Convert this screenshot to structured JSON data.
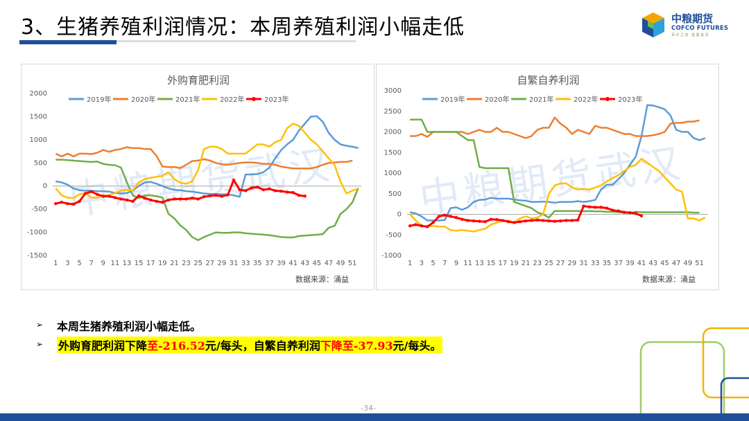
{
  "page": {
    "title": "3、生猪养殖利润情况：本周养殖利润小幅走低",
    "logo_cn": "中粮期货",
    "logo_en": "COFCO FUTURES",
    "logo_sub": "百年之道  基業長青",
    "page_number": "-34-"
  },
  "bullets": {
    "line1": "本周生猪养殖利润小幅走低。",
    "line2": {
      "part1": "外购育肥利润下降",
      "part2": "至",
      "part3": "-216.52",
      "part4": "元/每头，自繁自养利润",
      "part5": "下降至",
      "part6": "-37.93",
      "part7": "元/每头。"
    }
  },
  "colors": {
    "2019年": "#5b9bd5",
    "2020年": "#ed7d31",
    "2021年": "#70ad47",
    "2022年": "#ffc000",
    "2023年": "#ff0000",
    "brand": "#1f4e9a"
  },
  "chart_data": [
    {
      "id": "chart-left",
      "type": "line",
      "title": "外购育肥利润",
      "watermark": "中粮期货武汉",
      "source": "数据来源：涌益",
      "x": [
        1,
        2,
        3,
        4,
        5,
        6,
        7,
        8,
        9,
        10,
        11,
        12,
        13,
        14,
        15,
        16,
        17,
        18,
        19,
        20,
        21,
        22,
        23,
        24,
        25,
        26,
        27,
        28,
        29,
        30,
        31,
        32,
        33,
        34,
        35,
        36,
        37,
        38,
        39,
        40,
        41,
        42,
        43,
        44,
        45,
        46,
        47,
        48,
        49,
        50,
        51,
        52
      ],
      "x_ticks": [
        1,
        3,
        5,
        7,
        9,
        11,
        13,
        15,
        17,
        19,
        21,
        23,
        25,
        27,
        29,
        31,
        33,
        35,
        37,
        39,
        41,
        43,
        45,
        47,
        49,
        51
      ],
      "ylim": [
        -1500,
        2000
      ],
      "y_ticks": [
        -1500,
        -1000,
        -500,
        0,
        500,
        1000,
        1500,
        2000
      ],
      "series": [
        {
          "name": "2019年",
          "values": [
            100,
            80,
            30,
            -50,
            -90,
            -100,
            -100,
            -110,
            -110,
            -120,
            -150,
            -160,
            -150,
            -100,
            0,
            80,
            90,
            50,
            0,
            -50,
            -80,
            -90,
            -110,
            -120,
            -140,
            -160,
            -170,
            -170,
            -180,
            -180,
            -200,
            -230,
            250,
            250,
            260,
            300,
            400,
            600,
            780,
            900,
            1000,
            1200,
            1350,
            1500,
            1510,
            1390,
            1150,
            1000,
            900,
            870,
            850,
            820
          ]
        },
        {
          "name": "2020年",
          "values": [
            700,
            640,
            700,
            640,
            700,
            700,
            690,
            720,
            780,
            740,
            780,
            800,
            840,
            820,
            820,
            800,
            800,
            650,
            420,
            410,
            410,
            390,
            460,
            540,
            550,
            580,
            550,
            500,
            470,
            460,
            480,
            500,
            510,
            510,
            500,
            480,
            480,
            460,
            420,
            400,
            380,
            380,
            380,
            380,
            410,
            460,
            500,
            510,
            520,
            520,
            550,
            null
          ]
        },
        {
          "name": "2021年",
          "values": [
            570,
            570,
            560,
            550,
            540,
            530,
            520,
            530,
            480,
            460,
            450,
            400,
            80,
            -200,
            -260,
            -200,
            -200,
            -220,
            -250,
            -600,
            -700,
            -850,
            -950,
            -1100,
            -1170,
            -1100,
            -1050,
            -1000,
            -1010,
            -1010,
            -1000,
            -1000,
            -1020,
            -1030,
            -1040,
            -1050,
            -1060,
            -1080,
            -1100,
            -1110,
            -1110,
            -1080,
            -1070,
            -1060,
            -1050,
            -1040,
            -900,
            -860,
            -600,
            -500,
            -350,
            -40
          ]
        },
        {
          "name": "2022年",
          "values": [
            -50,
            -200,
            -250,
            -260,
            -180,
            -150,
            -250,
            -250,
            -200,
            -200,
            -150,
            -100,
            -80,
            -100,
            80,
            150,
            180,
            200,
            220,
            300,
            150,
            70,
            50,
            100,
            350,
            800,
            850,
            850,
            800,
            700,
            700,
            700,
            700,
            800,
            900,
            900,
            850,
            950,
            1000,
            1250,
            1350,
            1300,
            1150,
            1000,
            900,
            750,
            600,
            450,
            100,
            -160,
            -100,
            -50
          ]
        },
        {
          "name": "2023年",
          "values": [
            -380,
            -350,
            -380,
            -390,
            -330,
            -160,
            -120,
            -180,
            -220,
            -220,
            -250,
            -280,
            -300,
            -330,
            -210,
            -260,
            -300,
            -330,
            -350,
            -300,
            -280,
            -280,
            -280,
            -260,
            -280,
            -230,
            -210,
            -200,
            -220,
            -190,
            130,
            -80,
            -100,
            -40,
            -20,
            -80,
            -60,
            -100,
            -110,
            -130,
            -140,
            -200,
            -216.52,
            null,
            null,
            null,
            null,
            null,
            null,
            null,
            null,
            null
          ]
        }
      ]
    },
    {
      "id": "chart-right",
      "type": "line",
      "title": "自繁自养利润",
      "watermark": "中粮期货武汉",
      "source": "数据来源：涌益",
      "x": [
        1,
        2,
        3,
        4,
        5,
        6,
        7,
        8,
        9,
        10,
        11,
        12,
        13,
        14,
        15,
        16,
        17,
        18,
        19,
        20,
        21,
        22,
        23,
        24,
        25,
        26,
        27,
        28,
        29,
        30,
        31,
        32,
        33,
        34,
        35,
        36,
        37,
        38,
        39,
        40,
        41,
        42,
        43,
        44,
        45,
        46,
        47,
        48,
        49,
        50,
        51,
        52
      ],
      "x_ticks": [
        1,
        3,
        5,
        7,
        9,
        11,
        13,
        15,
        17,
        19,
        21,
        23,
        25,
        27,
        29,
        31,
        33,
        35,
        37,
        39,
        41,
        43,
        45,
        47,
        49,
        51
      ],
      "ylim": [
        -1000,
        3000
      ],
      "y_ticks": [
        -1000,
        -500,
        0,
        500,
        1000,
        1500,
        2000,
        2500,
        3000
      ],
      "series": [
        {
          "name": "2019年",
          "values": [
            50,
            20,
            -50,
            -150,
            -150,
            -150,
            -140,
            150,
            170,
            110,
            170,
            300,
            350,
            360,
            400,
            380,
            380,
            380,
            360,
            340,
            330,
            300,
            300,
            310,
            300,
            280,
            300,
            300,
            300,
            320,
            300,
            320,
            350,
            600,
            720,
            720,
            850,
            1000,
            1200,
            1400,
            1900,
            2650,
            2640,
            2600,
            2550,
            2400,
            2050,
            2000,
            2000,
            1850,
            1800,
            1850
          ]
        },
        {
          "name": "2020年",
          "values": [
            1900,
            1900,
            1950,
            1880,
            2000,
            2000,
            2000,
            2000,
            2000,
            2000,
            1950,
            2000,
            2050,
            2000,
            2000,
            2100,
            2000,
            2000,
            1950,
            1900,
            1850,
            1900,
            2050,
            2100,
            2100,
            2350,
            2200,
            2100,
            1950,
            2050,
            2000,
            1950,
            2150,
            2100,
            2100,
            2050,
            2000,
            1950,
            1950,
            1900,
            1900,
            1900,
            1920,
            1950,
            2000,
            2200,
            2220,
            2220,
            2250,
            2250,
            2280,
            null
          ]
        },
        {
          "name": "2021年",
          "values": [
            2300,
            2300,
            2300,
            2000,
            2000,
            2000,
            2000,
            2000,
            2000,
            1900,
            1800,
            1800,
            1150,
            1120,
            1120,
            1120,
            1120,
            1120,
            300,
            250,
            200,
            150,
            50,
            0,
            -80,
            80,
            80,
            80,
            80,
            80,
            70,
            80,
            70,
            70,
            60,
            60,
            50,
            40,
            30,
            60,
            50,
            50,
            50,
            50,
            50,
            50,
            50,
            50,
            50,
            40,
            40,
            null
          ]
        },
        {
          "name": "2022年",
          "values": [
            0,
            -150,
            -280,
            -300,
            -280,
            -300,
            -300,
            -380,
            -400,
            -380,
            -400,
            -420,
            -380,
            -350,
            -250,
            -200,
            -150,
            -150,
            -200,
            -100,
            -50,
            -100,
            -80,
            0,
            500,
            700,
            750,
            750,
            650,
            600,
            620,
            600,
            650,
            700,
            800,
            880,
            950,
            1050,
            1150,
            1200,
            1350,
            1250,
            1150,
            1050,
            900,
            750,
            600,
            550,
            -100,
            -100,
            -150,
            -80
          ]
        },
        {
          "name": "2023年",
          "values": [
            -280,
            -250,
            -280,
            -300,
            -200,
            -50,
            -20,
            -50,
            -80,
            -120,
            -150,
            -160,
            -170,
            -180,
            -120,
            -130,
            -150,
            -180,
            -200,
            -180,
            -160,
            -150,
            -140,
            -150,
            -160,
            -170,
            -160,
            -150,
            -150,
            -140,
            200,
            180,
            170,
            170,
            150,
            100,
            80,
            50,
            40,
            20,
            -37.93,
            null,
            null,
            null,
            null,
            null,
            null,
            null,
            null,
            null,
            null,
            null
          ]
        }
      ]
    }
  ]
}
